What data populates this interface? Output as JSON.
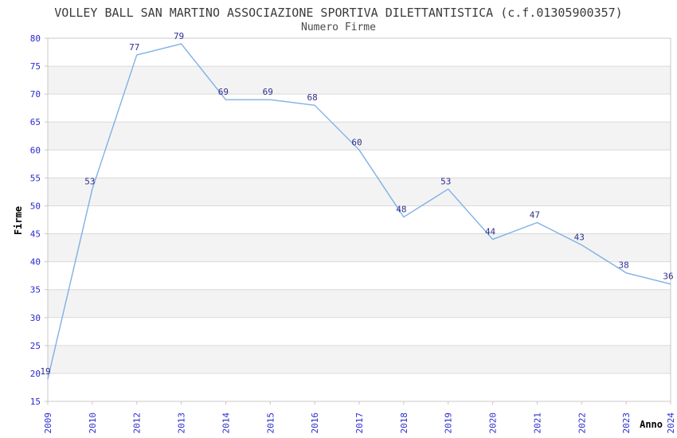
{
  "chart_data": {
    "type": "line",
    "title": "VOLLEY BALL SAN MARTINO ASSOCIAZIONE SPORTIVA DILETTANTISTICA (c.f.01305900357)",
    "subtitle": "Numero Firme",
    "xlabel": "Anno",
    "ylabel": "Firme",
    "categories": [
      "2009",
      "2010",
      "2012",
      "2013",
      "2014",
      "2015",
      "2016",
      "2017",
      "2018",
      "2019",
      "2020",
      "2021",
      "2022",
      "2023",
      "2024"
    ],
    "values": [
      19,
      53,
      77,
      79,
      69,
      69,
      68,
      60,
      48,
      53,
      44,
      47,
      43,
      38,
      36
    ],
    "point_labels": [
      "19",
      "53",
      "77",
      "79",
      "69",
      "69",
      "68",
      "60",
      "48",
      "53",
      "44",
      "47",
      "43",
      "38",
      "36"
    ],
    "ylim": [
      15,
      80
    ],
    "yticks": [
      15,
      20,
      25,
      30,
      35,
      40,
      45,
      50,
      55,
      60,
      65,
      70,
      75,
      80
    ],
    "grid": true,
    "legend": null,
    "layout_hints": {
      "x_tick_rotation": 90,
      "alternating_bands": true
    },
    "colors": {
      "line": "#7fb0e6",
      "point_label": "#2f2f8f",
      "tick_label": "#2a2ace",
      "axis_title": "#333333",
      "band_light": "#ffffff",
      "band_dark": "#f3f3f3",
      "grid": "#dadada",
      "border": "#c9c9c9",
      "title": "#3b3b3b"
    }
  }
}
